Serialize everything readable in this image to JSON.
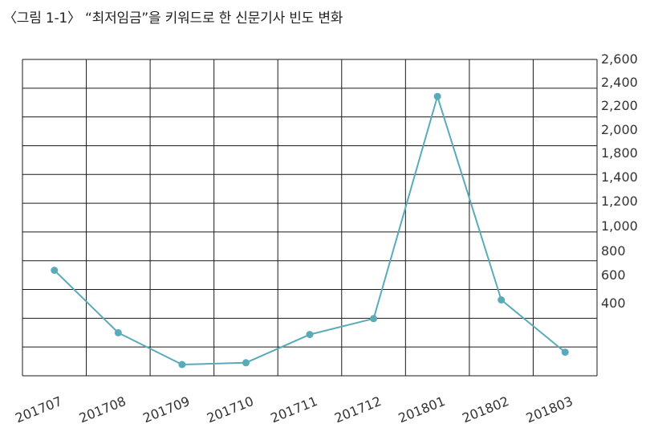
{
  "chart_data": {
    "type": "line",
    "title": "〈그림 1-1〉 “최저임금”을 키워드로 한 신문기사 빈도 변화",
    "xlabel": "",
    "ylabel": "",
    "categories": [
      "201707",
      "201708",
      "201709",
      "201710",
      "201711",
      "201712",
      "201801",
      "201802",
      "201803"
    ],
    "series": [
      {
        "values": [
          640,
          230,
          50,
          60,
          220,
          310,
          2250,
          420,
          120
        ],
        "color": "#5aabb9"
      }
    ],
    "y_tick_labels": [
      "2,600",
      "2,400",
      "2,200",
      "2,000",
      "1,800",
      "1,400",
      "1,200",
      "1,000",
      "800",
      "600",
      "400"
    ],
    "grid": true
  }
}
